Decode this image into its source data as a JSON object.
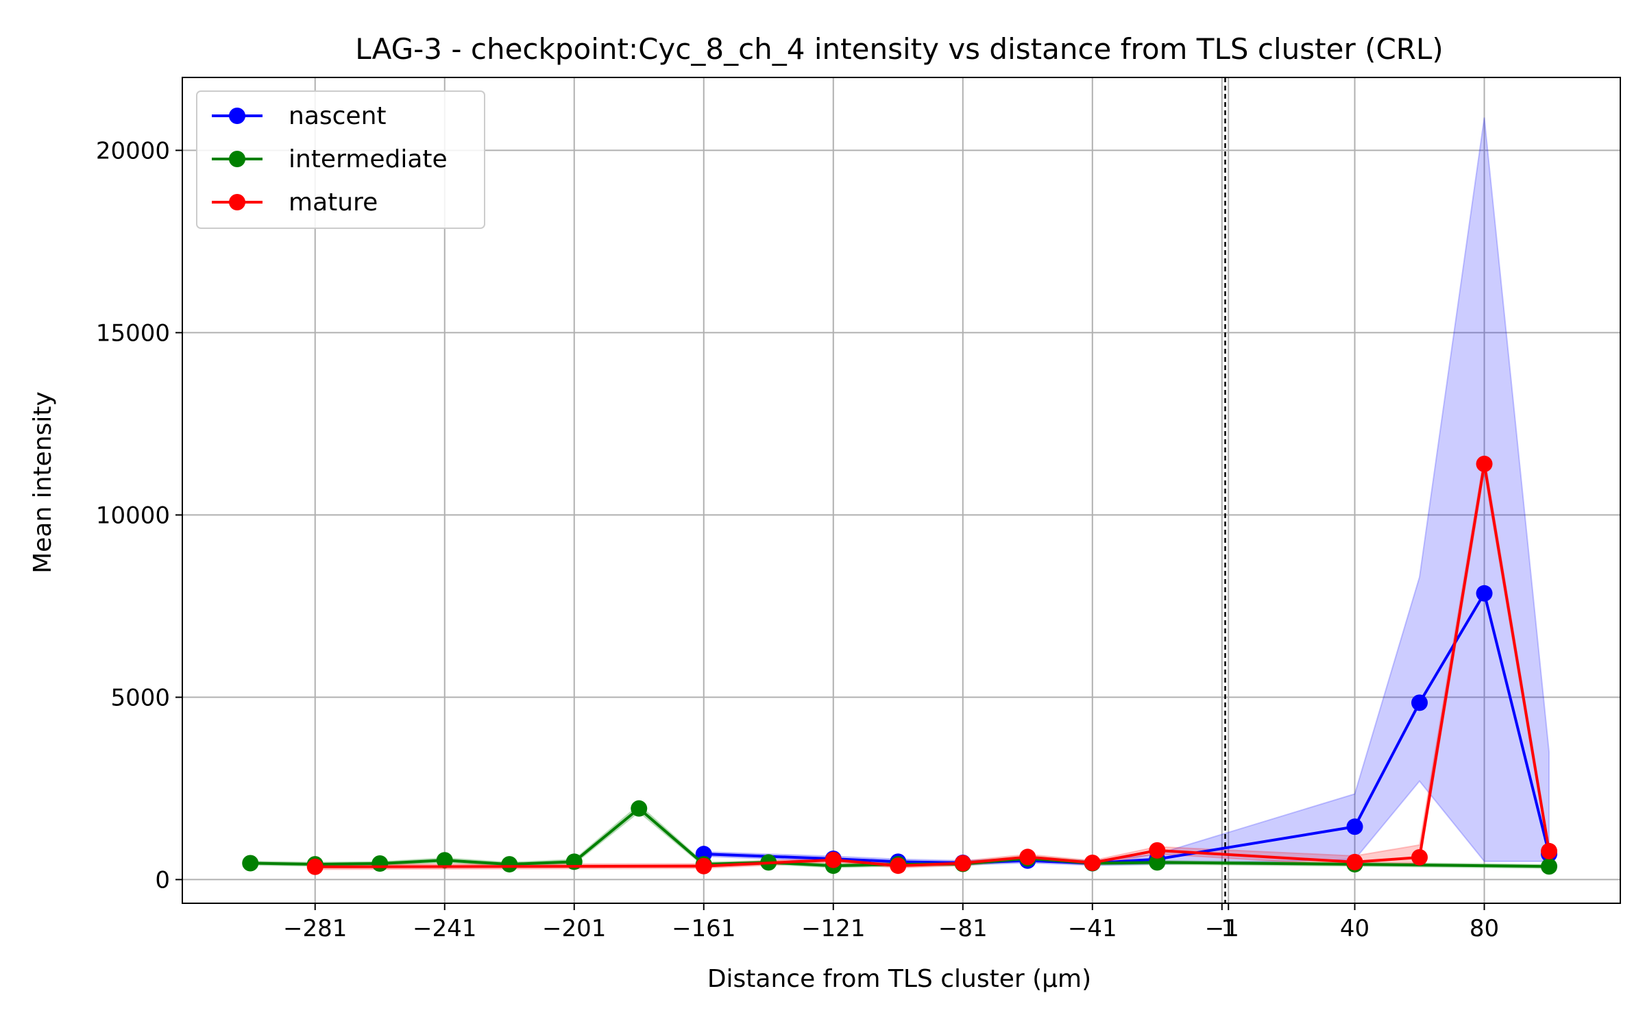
{
  "chart_data": {
    "type": "line",
    "title": "LAG-3 - checkpoint:Cyc_8_ch_4 intensity vs distance from TLS cluster (CRL)",
    "xlabel": "Distance from TLS cluster (μm)",
    "ylabel": "Mean intensity",
    "xlim": [
      -322,
      122
    ],
    "ylim": [
      -650,
      22000
    ],
    "x_ticks": [
      -281,
      -241,
      -201,
      -161,
      -121,
      -81,
      -41,
      -1,
      1,
      40,
      80
    ],
    "x_tick_labels": [
      "−281",
      "−241",
      "−201",
      "−161",
      "−121",
      "−81",
      "−41",
      "−1",
      "1",
      "40",
      "80"
    ],
    "y_ticks": [
      0,
      5000,
      10000,
      15000,
      20000
    ],
    "y_tick_labels": [
      "0",
      "5000",
      "10000",
      "15000",
      "20000"
    ],
    "grid": true,
    "legend_position": "top-left",
    "reference_line_x": 0,
    "series": [
      {
        "name": "nascent",
        "color": "#0000ff",
        "x": [
          -161,
          -121,
          -101,
          -81,
          -61,
          -41,
          -21,
          40,
          60,
          80,
          100
        ],
        "y": [
          700,
          570,
          490,
          460,
          520,
          450,
          560,
          1450,
          4850,
          7850,
          700
        ],
        "band_upper": [
          760,
          640,
          560,
          520,
          580,
          510,
          700,
          2350,
          8300,
          20900,
          3500
        ],
        "band_lower": [
          640,
          500,
          420,
          400,
          460,
          390,
          420,
          550,
          2700,
          500,
          500
        ]
      },
      {
        "name": "intermediate",
        "color": "#008000",
        "x": [
          -301,
          -281,
          -261,
          -241,
          -221,
          -201,
          -181,
          -161,
          -141,
          -121,
          -101,
          -81,
          -61,
          -41,
          -21,
          40,
          100
        ],
        "y": [
          450,
          420,
          440,
          530,
          420,
          490,
          1950,
          420,
          470,
          380,
          420,
          430,
          580,
          450,
          470,
          420,
          360
        ],
        "band_upper": [
          500,
          470,
          490,
          590,
          470,
          550,
          2050,
          470,
          520,
          430,
          470,
          480,
          640,
          500,
          520,
          470,
          410
        ],
        "band_lower": [
          400,
          370,
          390,
          470,
          370,
          430,
          1850,
          370,
          420,
          330,
          370,
          380,
          520,
          400,
          420,
          370,
          310
        ]
      },
      {
        "name": "mature",
        "color": "#ff0000",
        "x": [
          -281,
          -161,
          -121,
          -101,
          -81,
          -61,
          -41,
          -21,
          40,
          60,
          80,
          100
        ],
        "y": [
          350,
          370,
          540,
          380,
          450,
          620,
          460,
          800,
          480,
          610,
          11400,
          780
        ],
        "band_upper": [
          420,
          430,
          600,
          440,
          510,
          690,
          520,
          900,
          650,
          950,
          11600,
          900
        ],
        "band_lower": [
          280,
          310,
          480,
          320,
          390,
          550,
          400,
          700,
          380,
          450,
          11200,
          660
        ]
      }
    ]
  }
}
